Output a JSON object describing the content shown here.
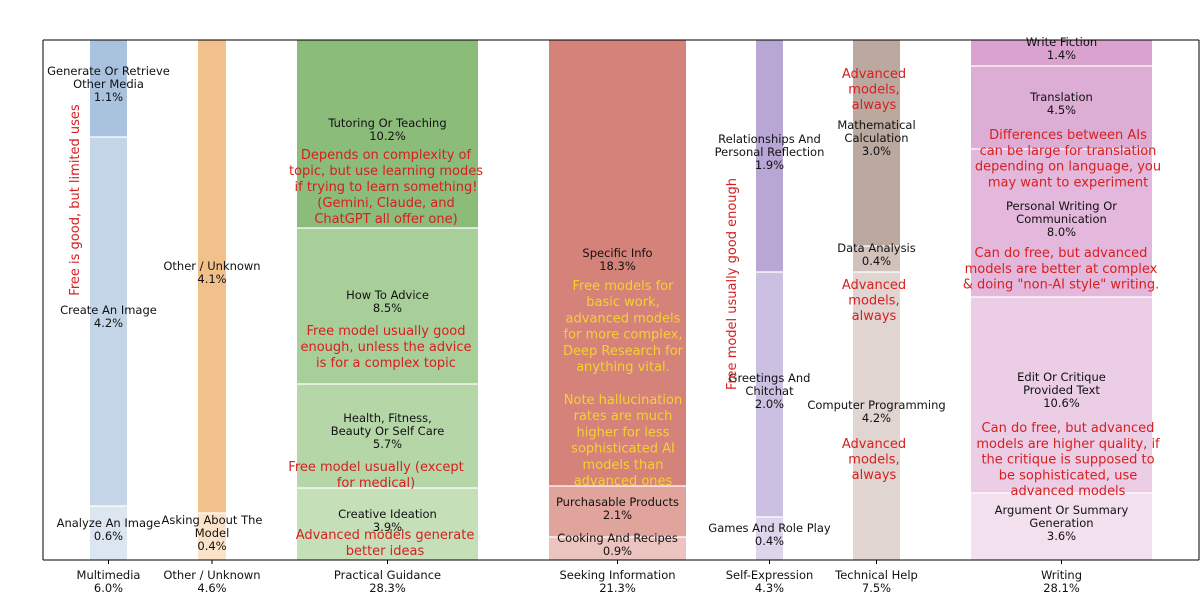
{
  "chart_data": {
    "type": "stacked-bar",
    "colors": {
      "annotation_red": "#d61f1f",
      "annotation_yellow": "#f5d130"
    },
    "categories": [
      {
        "name": "Multimedia",
        "pct": "6.0%",
        "color": "#4a7ab8",
        "segments": [
          {
            "name": "Generate Or Retrieve\nOther Media",
            "pct": "1.1%",
            "value": 1.1,
            "color": "#a9c3de"
          },
          {
            "name": "Create An Image",
            "pct": "4.2%",
            "value": 4.2,
            "color": "#c4d5e7"
          },
          {
            "name": "Analyze An Image",
            "pct": "0.6%",
            "value": 0.6,
            "color": "#dce6f1"
          }
        ]
      },
      {
        "name": "Other / Unknown",
        "pct": "4.6%",
        "color": "#f0a050",
        "segments": [
          {
            "name": "Other / Unknown",
            "pct": "4.1%",
            "value": 4.1,
            "color": "#f2c08a"
          },
          {
            "name": "Asking About The\nModel",
            "pct": "0.4%",
            "value": 0.4,
            "color": "#fae3c8"
          }
        ]
      },
      {
        "name": "Practical Guidance",
        "pct": "28.3%",
        "color": "#5a9a50",
        "segments": [
          {
            "name": "Tutoring Or Teaching",
            "pct": "10.2%",
            "value": 10.2,
            "color": "#8bbc7a"
          },
          {
            "name": "How To Advice",
            "pct": "8.5%",
            "value": 8.5,
            "color": "#a8cf9a"
          },
          {
            "name": "Health, Fitness,\nBeauty Or Self Care",
            "pct": "5.7%",
            "value": 5.7,
            "color": "#b5d7a8"
          },
          {
            "name": "Creative Ideation",
            "pct": "3.9%",
            "value": 3.9,
            "color": "#c5e0b9"
          }
        ]
      },
      {
        "name": "Seeking Information",
        "pct": "21.3%",
        "color": "#c04030",
        "segments": [
          {
            "name": "Specific Info",
            "pct": "18.3%",
            "value": 18.3,
            "color": "#d4827a"
          },
          {
            "name": "Purchasable Products",
            "pct": "2.1%",
            "value": 2.1,
            "color": "#e0a49c"
          },
          {
            "name": "Cooking And Recipes",
            "pct": "0.9%",
            "value": 0.9,
            "color": "#ebc4bf"
          }
        ]
      },
      {
        "name": "Self-Expression",
        "pct": "4.3%",
        "color": "#8060b0",
        "segments": [
          {
            "name": "Relationships And\nPersonal Reflection",
            "pct": "1.9%",
            "value": 1.9,
            "color": "#b8a7d4"
          },
          {
            "name": "Greetings And\nChitchat",
            "pct": "2.0%",
            "value": 2.0,
            "color": "#cbc0e1"
          },
          {
            "name": "Games And Role Play",
            "pct": "0.4%",
            "value": 0.4,
            "color": "#ddd5ec"
          }
        ]
      },
      {
        "name": "Technical Help",
        "pct": "7.5%",
        "color": "#8a6a58",
        "segments": [
          {
            "name": "Mathematical\nCalculation",
            "pct": "3.0%",
            "value": 3.0,
            "color": "#bba9a0"
          },
          {
            "name": "Data Analysis",
            "pct": "0.4%",
            "value": 0.4,
            "color": "#d1c3bc"
          },
          {
            "name": "Computer Programming",
            "pct": "4.2%",
            "value": 4.2,
            "color": "#e0d5d0"
          }
        ]
      },
      {
        "name": "Writing",
        "pct": "28.1%",
        "color": "#c060a8",
        "segments": [
          {
            "name": "Write Fiction",
            "pct": "1.4%",
            "value": 1.4,
            "color": "#d9a2cf"
          },
          {
            "name": "Translation",
            "pct": "4.5%",
            "value": 4.5,
            "color": "#dcadd5"
          },
          {
            "name": "Personal Writing Or\nCommunication",
            "pct": "8.0%",
            "value": 8.0,
            "color": "#e3b8dc"
          },
          {
            "name": "Edit Or Critique\nProvided Text",
            "pct": "10.6%",
            "value": 10.6,
            "color": "#ebcde6"
          },
          {
            "name": "Argument Or Summary\nGeneration",
            "pct": "3.6%",
            "value": 3.6,
            "color": "#f2e0ef"
          }
        ]
      }
    ],
    "annotations": [
      {
        "text": "Free is good, but limited uses",
        "color": "red",
        "rotate": true
      },
      {
        "text": "Depends on complexity of\ntopic, but use learning modes\nif trying to learn something!\n(Gemini, Claude, and\nChatGPT all offer one)",
        "color": "red"
      },
      {
        "text": "Free model usually good\nenough, unless the advice\nis for a complex topic",
        "color": "red"
      },
      {
        "text": "Free model usually (except\nfor medical)",
        "color": "red"
      },
      {
        "text": "Advanced models generate\nbetter ideas",
        "color": "red"
      },
      {
        "text": "Free models for\nbasic work,\nadvanced models\nfor more complex,\nDeep Research for\nanything vital.",
        "color": "yellow"
      },
      {
        "text": "Note hallucination\nrates are much\nhigher for less\nsophisticated AI\nmodels than\nadvanced ones",
        "color": "yellow"
      },
      {
        "text": "Free model usually good enough",
        "color": "red",
        "rotate": true
      },
      {
        "text": "Advanced\nmodels,\nalways",
        "color": "red"
      },
      {
        "text": "Advanced\nmodels,\nalways",
        "color": "red"
      },
      {
        "text": "Advanced\nmodels,\nalways",
        "color": "red"
      },
      {
        "text": "Differences between AIs\ncan be large for translation\ndepending on language, you\nmay want to experiment",
        "color": "red"
      },
      {
        "text": "Can do free, but advanced\nmodels are better at complex\n& doing \"non-AI style\" writing.",
        "color": "red"
      },
      {
        "text": "Can do free, but advanced\nmodels are higher quality, if\nthe critique is supposed to\nbe sophisticated, use\nadvanced models",
        "color": "red"
      }
    ]
  }
}
